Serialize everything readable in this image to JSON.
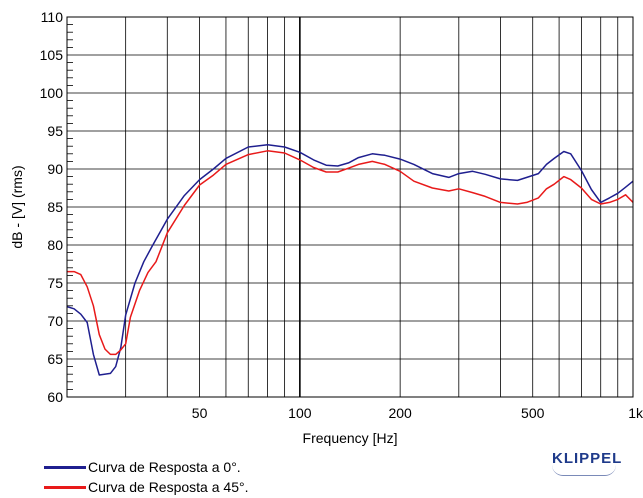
{
  "chart_data": {
    "type": "line",
    "xlabel": "Frequency [Hz]",
    "ylabel": "dB - [V]  (rms)",
    "x_scale": "log",
    "xlim": [
      20,
      1000
    ],
    "ylim": [
      60,
      110
    ],
    "grid": true,
    "y_ticks": [
      60,
      65,
      70,
      75,
      80,
      85,
      90,
      95,
      100,
      105,
      110
    ],
    "x_ticks": [
      {
        "value": 50,
        "label": "50"
      },
      {
        "value": 100,
        "label": "100"
      },
      {
        "value": 200,
        "label": "200"
      },
      {
        "value": 500,
        "label": "500"
      },
      {
        "value": 1000,
        "label": "1k"
      }
    ],
    "legend_position": "bottom-left",
    "series": [
      {
        "name": "Curva de Resposta a 0°.",
        "color": "#1f1f8f",
        "points": [
          [
            20,
            71.9
          ],
          [
            21,
            71.6
          ],
          [
            22,
            70.9
          ],
          [
            23,
            69.8
          ],
          [
            24,
            65.6
          ],
          [
            25,
            62.9
          ],
          [
            27,
            63.1
          ],
          [
            28,
            64.0
          ],
          [
            29,
            66.5
          ],
          [
            30,
            70.8
          ],
          [
            32,
            75.0
          ],
          [
            34,
            77.8
          ],
          [
            36,
            79.8
          ],
          [
            40,
            83.4
          ],
          [
            45,
            86.5
          ],
          [
            50,
            88.6
          ],
          [
            55,
            90.0
          ],
          [
            60,
            91.4
          ],
          [
            70,
            92.9
          ],
          [
            80,
            93.2
          ],
          [
            90,
            92.9
          ],
          [
            100,
            92.2
          ],
          [
            110,
            91.2
          ],
          [
            120,
            90.5
          ],
          [
            130,
            90.4
          ],
          [
            140,
            90.8
          ],
          [
            150,
            91.5
          ],
          [
            165,
            92.0
          ],
          [
            180,
            91.8
          ],
          [
            200,
            91.3
          ],
          [
            220,
            90.6
          ],
          [
            250,
            89.4
          ],
          [
            280,
            88.9
          ],
          [
            300,
            89.4
          ],
          [
            330,
            89.7
          ],
          [
            360,
            89.3
          ],
          [
            400,
            88.7
          ],
          [
            450,
            88.5
          ],
          [
            480,
            88.9
          ],
          [
            520,
            89.4
          ],
          [
            550,
            90.6
          ],
          [
            580,
            91.4
          ],
          [
            620,
            92.3
          ],
          [
            650,
            92.0
          ],
          [
            700,
            89.8
          ],
          [
            750,
            87.3
          ],
          [
            800,
            85.6
          ],
          [
            850,
            86.2
          ],
          [
            900,
            86.8
          ],
          [
            950,
            87.6
          ],
          [
            1000,
            88.4
          ]
        ]
      },
      {
        "name": "Curva de Resposta a 45°.",
        "color": "#e81a1a",
        "points": [
          [
            20,
            76.5
          ],
          [
            21,
            76.5
          ],
          [
            22,
            76.1
          ],
          [
            23,
            74.5
          ],
          [
            24,
            72.0
          ],
          [
            25,
            68.2
          ],
          [
            26,
            66.3
          ],
          [
            27,
            65.6
          ],
          [
            28,
            65.6
          ],
          [
            29,
            66.2
          ],
          [
            30,
            67.0
          ],
          [
            31,
            70.5
          ],
          [
            33,
            74.0
          ],
          [
            35,
            76.4
          ],
          [
            37,
            77.8
          ],
          [
            40,
            81.6
          ],
          [
            45,
            85.2
          ],
          [
            50,
            87.9
          ],
          [
            55,
            89.2
          ],
          [
            60,
            90.6
          ],
          [
            70,
            91.9
          ],
          [
            80,
            92.4
          ],
          [
            90,
            92.1
          ],
          [
            100,
            91.2
          ],
          [
            110,
            90.2
          ],
          [
            120,
            89.6
          ],
          [
            130,
            89.6
          ],
          [
            140,
            90.1
          ],
          [
            150,
            90.6
          ],
          [
            165,
            91.0
          ],
          [
            180,
            90.6
          ],
          [
            200,
            89.7
          ],
          [
            220,
            88.4
          ],
          [
            250,
            87.5
          ],
          [
            280,
            87.1
          ],
          [
            300,
            87.4
          ],
          [
            330,
            86.9
          ],
          [
            360,
            86.4
          ],
          [
            400,
            85.6
          ],
          [
            450,
            85.4
          ],
          [
            480,
            85.6
          ],
          [
            520,
            86.2
          ],
          [
            550,
            87.4
          ],
          [
            580,
            88.0
          ],
          [
            620,
            89.0
          ],
          [
            650,
            88.6
          ],
          [
            700,
            87.5
          ],
          [
            750,
            86.0
          ],
          [
            800,
            85.4
          ],
          [
            850,
            85.6
          ],
          [
            900,
            86.0
          ],
          [
            950,
            86.6
          ],
          [
            1000,
            85.6
          ]
        ]
      }
    ]
  },
  "logo": {
    "text": "KLIPPEL"
  }
}
